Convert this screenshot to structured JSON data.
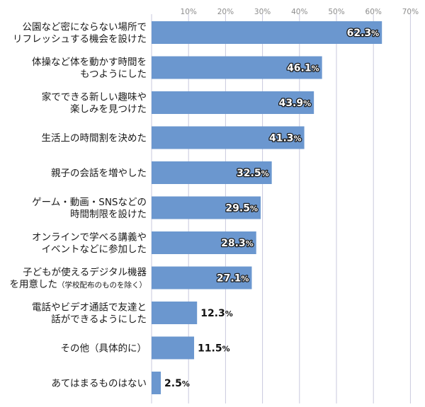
{
  "chart_data": {
    "type": "bar",
    "orientation": "horizontal",
    "categories": [
      [
        "公園など密にならない場所で",
        "リフレッシュする機会を設けた"
      ],
      [
        "体操など体を動かす時間を",
        "もつようにした"
      ],
      [
        "家でできる新しい趣味や",
        "楽しみを見つけた"
      ],
      [
        "生活上の時間割を決めた"
      ],
      [
        "親子の会話を増やした"
      ],
      [
        "ゲーム・動画・SNSなどの",
        "時間制限を設けた"
      ],
      [
        "オンラインで学べる講義や",
        "イベントなどに参加した"
      ],
      [
        "子どもが使えるデジタル機器",
        "を用意した"
      ],
      [
        "電話やビデオ通話で友達と",
        "話ができるようにした"
      ],
      [
        "その他（具体的に）"
      ],
      [
        "あてはまるものはない"
      ]
    ],
    "category_notes": [
      "",
      "",
      "",
      "",
      "",
      "",
      "",
      "（学校配布のものを除く）",
      "",
      "",
      ""
    ],
    "values": [
      62.3,
      46.1,
      43.9,
      41.3,
      32.5,
      29.5,
      28.3,
      27.1,
      12.3,
      11.5,
      2.5
    ],
    "value_labels": [
      "62.3",
      "46.1",
      "43.9",
      "41.3",
      "32.5",
      "29.5",
      "28.3",
      "27.1",
      "12.3",
      "11.5",
      "2.5"
    ],
    "value_suffix": "%",
    "ticks": [
      "10%",
      "20%",
      "30%",
      "40%",
      "50%",
      "60%",
      "70%"
    ],
    "tick_values": [
      10,
      20,
      30,
      40,
      50,
      60,
      70
    ],
    "xlim": [
      0,
      70
    ],
    "grid": true,
    "bar_color": "#6b97cf",
    "grid_color": "#c9c9dd",
    "label_inside_color": "#ffffff",
    "label_outside_color": "#111111"
  }
}
